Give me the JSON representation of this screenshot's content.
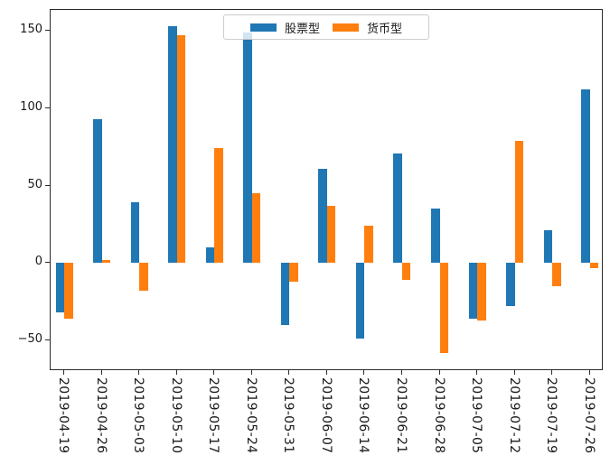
{
  "chart_data": {
    "type": "bar",
    "title": "",
    "xlabel": "",
    "ylabel": "",
    "categories": [
      "2019-04-19",
      "2019-04-26",
      "2019-05-03",
      "2019-05-10",
      "2019-05-17",
      "2019-05-24",
      "2019-05-31",
      "2019-06-07",
      "2019-06-14",
      "2019-06-21",
      "2019-06-28",
      "2019-07-05",
      "2019-07-12",
      "2019-07-19",
      "2019-07-26"
    ],
    "series": [
      {
        "name": "股票型",
        "color": "#1f77b4",
        "values": [
          -32,
          93,
          39,
          153,
          10,
          149,
          -40,
          61,
          -49,
          71,
          35,
          -36,
          -28,
          21,
          112
        ]
      },
      {
        "name": "货币型",
        "color": "#ff7f0e",
        "values": [
          -36,
          2,
          -18,
          147,
          74,
          45,
          -12,
          37,
          24,
          -11,
          -58,
          -37,
          79,
          -15,
          -3
        ]
      }
    ],
    "y_ticks": [
      -50,
      0,
      50,
      100,
      150
    ],
    "ylim": [
      -68.6,
      163.5
    ],
    "grid": false,
    "legend_position": "upper center",
    "background": "#ffffff",
    "axis_color": "#2b2b2b"
  }
}
